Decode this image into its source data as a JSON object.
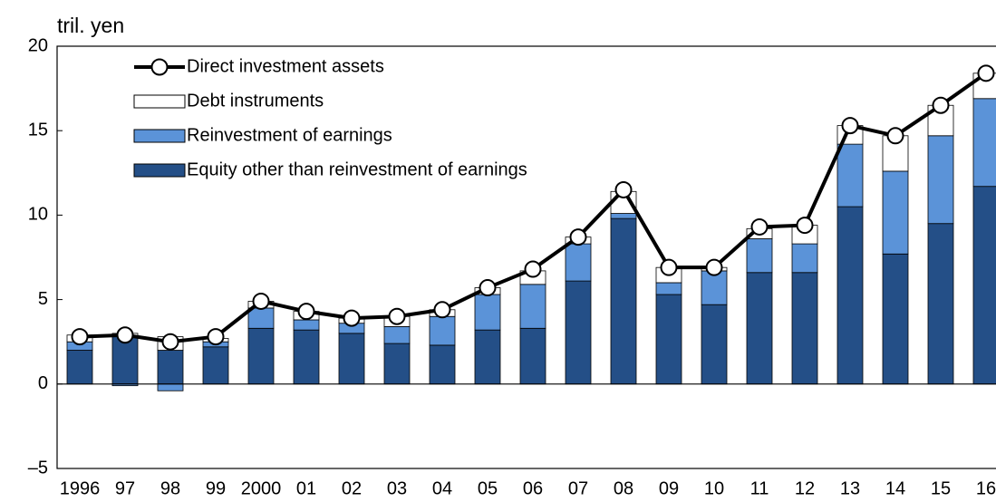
{
  "chart_data": {
    "type": "bar",
    "stacked": true,
    "y_axis_label": "tril. yen",
    "categories": [
      "1996",
      "97",
      "98",
      "99",
      "2000",
      "01",
      "02",
      "03",
      "04",
      "05",
      "06",
      "07",
      "08",
      "09",
      "10",
      "11",
      "12",
      "13",
      "14",
      "15",
      "16"
    ],
    "series": [
      {
        "name": "Equity other than reinvestment of earnings",
        "type": "bar",
        "color": "#244f87",
        "values": [
          2.0,
          2.8,
          2.0,
          2.2,
          3.3,
          3.2,
          3.0,
          2.4,
          2.3,
          3.2,
          3.3,
          6.1,
          9.8,
          5.3,
          4.7,
          6.6,
          6.6,
          10.5,
          7.7,
          9.5,
          11.7
        ]
      },
      {
        "name": "Reinvestment of earnings",
        "type": "bar",
        "color": "#5b93d8",
        "values": [
          0.5,
          -0.1,
          -0.4,
          0.3,
          1.2,
          0.6,
          0.6,
          1.0,
          1.7,
          2.1,
          2.6,
          2.2,
          0.3,
          0.7,
          2.0,
          2.0,
          1.7,
          3.7,
          4.9,
          5.2,
          5.2
        ]
      },
      {
        "name": "Debt instruments",
        "type": "bar",
        "color": "#ffffff",
        "values": [
          0.4,
          0.2,
          0.8,
          0.2,
          0.4,
          0.5,
          0.3,
          0.6,
          0.4,
          0.4,
          0.8,
          0.4,
          1.3,
          0.9,
          0.2,
          0.6,
          1.1,
          1.1,
          2.1,
          1.8,
          1.5
        ]
      },
      {
        "name": "Direct investment assets",
        "type": "line",
        "color": "#000000",
        "values": [
          2.8,
          2.9,
          2.5,
          2.8,
          4.9,
          4.3,
          3.9,
          4.0,
          4.4,
          5.7,
          6.8,
          8.7,
          11.5,
          6.9,
          6.9,
          9.3,
          9.4,
          15.3,
          14.7,
          16.5,
          18.4
        ]
      }
    ],
    "ylim": [
      -5,
      20
    ],
    "yticks": [
      {
        "value": -5,
        "label": "–5"
      },
      0,
      5,
      10,
      15,
      20
    ],
    "grid": false,
    "legend": "upper left"
  }
}
